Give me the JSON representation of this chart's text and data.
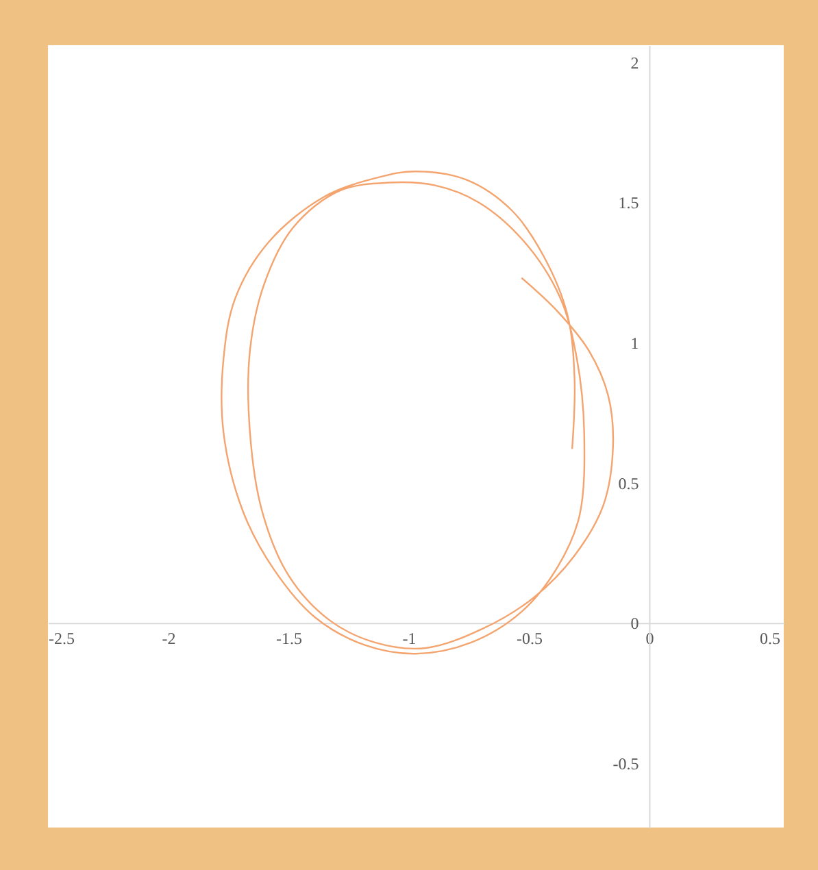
{
  "chart_data": {
    "type": "line",
    "x": [
      -0.53,
      -0.38,
      -0.25,
      -0.17,
      -0.15,
      -0.19,
      -0.31,
      -0.48,
      -0.69,
      -0.93,
      -1.14,
      -1.33,
      -1.5,
      -1.61,
      -1.66,
      -1.66,
      -1.6,
      -1.48,
      -1.29,
      -1.08,
      -0.89,
      -0.71,
      -0.52,
      -0.37,
      -0.3,
      -0.27,
      -0.29,
      -0.38,
      -0.53,
      -0.74,
      -0.97,
      -1.18,
      -1.39,
      -1.56,
      -1.69,
      -1.77,
      -1.77,
      -1.72,
      -1.58,
      -1.35,
      -1.12,
      -0.97,
      -0.76,
      -0.57,
      -0.44,
      -0.34,
      -0.31,
      -0.32
    ],
    "values": [
      1.23,
      1.11,
      0.97,
      0.81,
      0.63,
      0.42,
      0.24,
      0.09,
      -0.02,
      -0.09,
      -0.07,
      0.01,
      0.17,
      0.4,
      0.68,
      0.97,
      1.21,
      1.41,
      1.54,
      1.57,
      1.56,
      1.5,
      1.36,
      1.16,
      0.94,
      0.68,
      0.38,
      0.2,
      0.04,
      -0.07,
      -0.11,
      -0.08,
      0.02,
      0.19,
      0.4,
      0.68,
      0.94,
      1.16,
      1.36,
      1.52,
      1.59,
      1.61,
      1.58,
      1.47,
      1.31,
      1.1,
      0.87,
      0.62
    ],
    "color": "#f4a46e",
    "line_style": "solid",
    "xlim": [
      -2.5,
      0.56
    ],
    "ylim": [
      -0.73,
      2.06
    ],
    "xticks": [
      -2.5,
      -2,
      -1.5,
      -1,
      -0.5,
      0,
      0.5
    ],
    "yticks": [
      -0.5,
      0,
      0.5,
      1,
      1.5,
      2
    ]
  }
}
